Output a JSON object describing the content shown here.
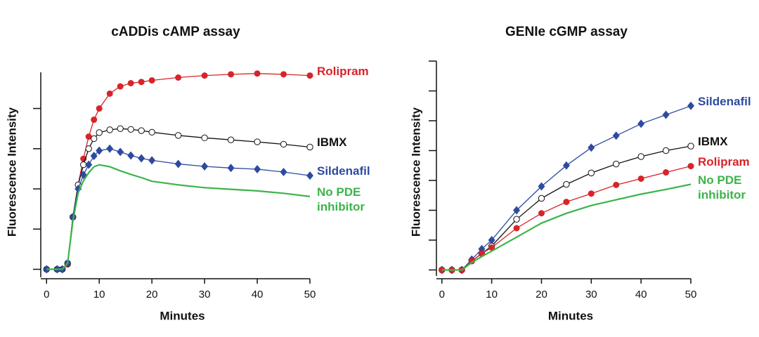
{
  "chart_data": [
    {
      "type": "line",
      "title": "cADDis cAMP assay",
      "xlabel": "Minutes",
      "ylabel": "Fluorescence Intensity",
      "x": [
        0,
        2,
        3,
        4,
        5,
        6,
        7,
        8,
        9,
        10,
        12,
        14,
        16,
        18,
        20,
        25,
        30,
        35,
        40,
        45,
        50
      ],
      "xlim": [
        -1.1,
        50
      ],
      "xticks": [
        0,
        10,
        20,
        30,
        40,
        50
      ],
      "ylim": [
        -0.2,
        4.9
      ],
      "yticks": [
        0,
        1,
        2,
        3,
        4
      ],
      "series": [
        {
          "name": "Rolipram",
          "color": "#d9232a",
          "marker": "filled-circle",
          "values": [
            0,
            0,
            0,
            0.12,
            1.3,
            2.1,
            2.75,
            3.3,
            3.72,
            4.0,
            4.37,
            4.55,
            4.63,
            4.66,
            4.7,
            4.77,
            4.82,
            4.85,
            4.87,
            4.85,
            4.82
          ]
        },
        {
          "name": "IBMX",
          "color": "#111111",
          "marker": "open-circle",
          "values": [
            0,
            0,
            0,
            0.15,
            1.3,
            2.1,
            2.6,
            3.0,
            3.25,
            3.4,
            3.47,
            3.5,
            3.48,
            3.45,
            3.41,
            3.33,
            3.27,
            3.22,
            3.17,
            3.11,
            3.04
          ]
        },
        {
          "name": "Sildenafil",
          "color": "#2e4aa0",
          "marker": "diamond",
          "values": [
            0,
            0,
            0,
            0.15,
            1.3,
            2.0,
            2.35,
            2.6,
            2.82,
            2.95,
            3.0,
            2.92,
            2.83,
            2.76,
            2.71,
            2.62,
            2.56,
            2.52,
            2.49,
            2.42,
            2.33
          ]
        },
        {
          "name": "No PDE inhibitor",
          "color": "#3cb44a",
          "marker": "none",
          "values": [
            0,
            0,
            0,
            0.15,
            1.2,
            1.9,
            2.2,
            2.4,
            2.55,
            2.6,
            2.55,
            2.45,
            2.36,
            2.28,
            2.19,
            2.1,
            2.03,
            1.99,
            1.95,
            1.89,
            1.81
          ]
        }
      ]
    },
    {
      "type": "line",
      "title": "GENIe cGMP assay",
      "xlabel": "Minutes",
      "ylabel": "Fluorescence Intensity",
      "x": [
        0,
        2,
        4,
        6,
        8,
        10,
        15,
        20,
        25,
        30,
        35,
        40,
        45,
        50
      ],
      "xlim": [
        -1.1,
        50
      ],
      "xticks": [
        0,
        10,
        20,
        30,
        40,
        50
      ],
      "ylim": [
        -0.2,
        7
      ],
      "yticks": [
        0,
        1,
        2,
        3,
        4,
        5,
        6,
        7
      ],
      "series": [
        {
          "name": "Sildenafil",
          "color": "#2e4aa0",
          "marker": "diamond",
          "values": [
            0,
            0,
            0,
            0.35,
            0.7,
            1.0,
            2.0,
            2.8,
            3.5,
            4.1,
            4.5,
            4.9,
            5.2,
            5.5
          ]
        },
        {
          "name": "IBMX",
          "color": "#111111",
          "marker": "open-circle",
          "values": [
            0,
            0,
            0,
            0.3,
            0.55,
            0.8,
            1.7,
            2.4,
            2.87,
            3.25,
            3.55,
            3.8,
            4.0,
            4.15
          ]
        },
        {
          "name": "Rolipram",
          "color": "#d9232a",
          "marker": "filled-circle",
          "values": [
            0,
            0,
            0,
            0.3,
            0.55,
            0.75,
            1.4,
            1.9,
            2.28,
            2.56,
            2.85,
            3.06,
            3.27,
            3.48
          ]
        },
        {
          "name": "No PDE inhibitor",
          "color": "#3cb44a",
          "marker": "none",
          "values": [
            0,
            0,
            0,
            0.25,
            0.45,
            0.63,
            1.1,
            1.57,
            1.9,
            2.16,
            2.35,
            2.54,
            2.7,
            2.87
          ]
        }
      ]
    }
  ]
}
